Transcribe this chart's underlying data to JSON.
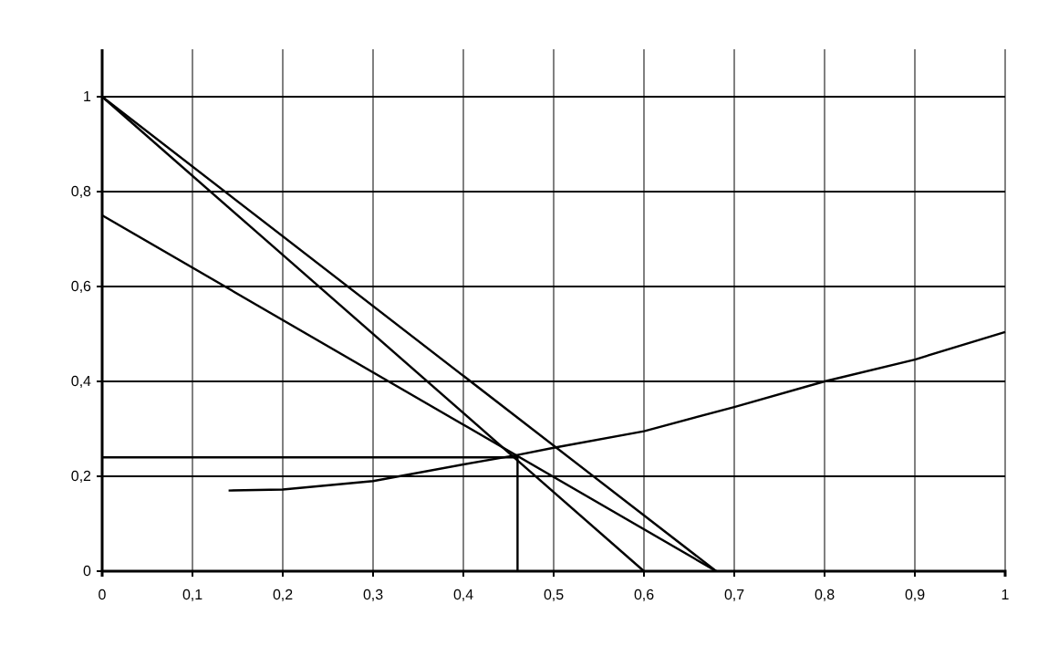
{
  "chart_data": {
    "type": "line",
    "xlim": [
      0,
      1
    ],
    "ylim": [
      0,
      1.1
    ],
    "xticks": [
      0,
      {
        "value": 0.1,
        "label": "0,1"
      },
      {
        "value": 0.2,
        "label": "0,2"
      },
      {
        "value": 0.3,
        "label": "0,3"
      },
      {
        "value": 0.4,
        "label": "0,4"
      },
      {
        "value": 0.5,
        "label": "0,5"
      },
      {
        "value": 0.6,
        "label": "0,6"
      },
      {
        "value": 0.7,
        "label": "0,7"
      },
      {
        "value": 0.8,
        "label": "0,8"
      },
      {
        "value": 0.9,
        "label": "0,9"
      },
      1
    ],
    "yticks": [
      0,
      {
        "value": 0.2,
        "label": "0,2"
      },
      {
        "value": 0.4,
        "label": "0,4"
      },
      {
        "value": 0.6,
        "label": "0,6"
      },
      {
        "value": 0.8,
        "label": "0,8"
      },
      1
    ],
    "grid": true,
    "marker": "none",
    "line_style": "solid",
    "series": [
      {
        "color": "#000000",
        "x": [
          0,
          0.6
        ],
        "values": [
          1,
          0
        ]
      },
      {
        "color": "#000000",
        "x": [
          0,
          0.68
        ],
        "values": [
          1,
          0
        ]
      },
      {
        "color": "#000000",
        "x": [
          0,
          0.68
        ],
        "values": [
          0.75,
          0
        ]
      },
      {
        "color": "#000000",
        "x": [
          0.14,
          0.2,
          0.3,
          0.4,
          0.46,
          0.5,
          0.6,
          0.7,
          0.8,
          0.9,
          1
        ],
        "values": [
          0.17,
          0.172,
          0.19,
          0.225,
          0.245,
          0.26,
          0.295,
          0.346,
          0.4,
          0.446,
          0.504
        ]
      },
      {
        "color": "#000000",
        "x": [
          0,
          0.46,
          0.46
        ],
        "values": [
          0.24,
          0.24,
          0
        ]
      }
    ]
  }
}
